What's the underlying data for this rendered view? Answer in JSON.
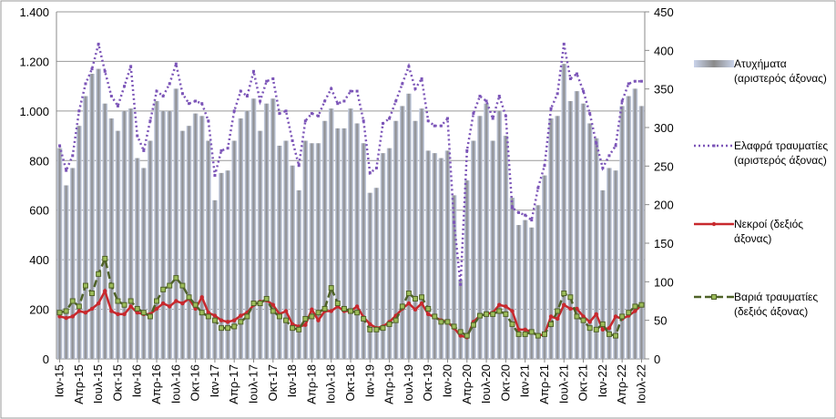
{
  "chart_data": {
    "type": "bar-line",
    "categories": [
      "Ιαν-15",
      null,
      null,
      "Απρ-15",
      null,
      null,
      "Ιουλ-15",
      null,
      null,
      "Οκτ-15",
      null,
      null,
      "Ιαν-16",
      null,
      null,
      "Απρ-16",
      null,
      null,
      "Ιουλ-16",
      null,
      null,
      "Οκτ-16",
      null,
      null,
      "Ιαν-17",
      null,
      null,
      "Απρ-17",
      null,
      null,
      "Ιουλ-17",
      null,
      null,
      "Οκτ-17",
      null,
      null,
      "Ιαν-18",
      null,
      null,
      "Απρ-18",
      null,
      null,
      "Ιουλ-18",
      null,
      null,
      "Οκτ-18",
      null,
      null,
      "Ιαν-19",
      null,
      null,
      "Απρ-19",
      null,
      null,
      "Ιουλ-19",
      null,
      null,
      "Οκτ-19",
      null,
      null,
      "Ιαν-20",
      null,
      null,
      "Απρ-20",
      null,
      null,
      "Ιουλ-20",
      null,
      null,
      "Οκτ-20",
      null,
      null,
      "Ιαν-21",
      null,
      null,
      "Απρ-21",
      null,
      null,
      "Ιουλ-21",
      null,
      null,
      "Οκτ-21",
      null,
      null,
      "Ιαν-22",
      null,
      null,
      "Απρ-22",
      null,
      null,
      "Ιουλ-22"
    ],
    "series": [
      {
        "name": "Ατυχήματα (αριστερός άξονας)",
        "kind": "bar",
        "color": "#b9c5e0",
        "values": [
          850,
          700,
          770,
          940,
          1060,
          1150,
          1170,
          1030,
          970,
          920,
          1000,
          1010,
          810,
          770,
          880,
          1040,
          1000,
          1000,
          1090,
          920,
          940,
          990,
          980,
          880,
          640,
          750,
          760,
          880,
          970,
          1000,
          1050,
          920,
          1030,
          1050,
          860,
          880,
          780,
          680,
          880,
          870,
          870,
          960,
          1010,
          930,
          930,
          1010,
          950,
          870,
          670,
          690,
          830,
          850,
          960,
          1020,
          1070,
          960,
          1010,
          840,
          830,
          810,
          840,
          660,
          320,
          720,
          880,
          980,
          1030,
          880,
          1000,
          900,
          650,
          540,
          560,
          530,
          620,
          740,
          970,
          980,
          1190,
          1040,
          1080,
          1030,
          950,
          890,
          680,
          770,
          760,
          1020,
          1060,
          1090,
          1020
        ]
      },
      {
        "name": "Ελαφρά τραυματίες (αριστερός άξονας)",
        "kind": "dotted",
        "color": "#7c55b8",
        "values": [
          860,
          760,
          820,
          1000,
          1110,
          1170,
          1270,
          1160,
          1060,
          1020,
          1100,
          1180,
          900,
          840,
          960,
          1080,
          1060,
          1110,
          1190,
          1070,
          1030,
          1040,
          1030,
          960,
          740,
          840,
          850,
          1000,
          1080,
          1060,
          1160,
          1040,
          1120,
          1130,
          990,
          1000,
          880,
          780,
          960,
          990,
          980,
          1040,
          1090,
          1030,
          1040,
          1080,
          1080,
          960,
          750,
          770,
          950,
          970,
          1040,
          1110,
          1180,
          1090,
          1130,
          960,
          940,
          940,
          970,
          550,
          300,
          840,
          990,
          1060,
          1040,
          970,
          1060,
          980,
          610,
          590,
          580,
          560,
          690,
          780,
          1010,
          1070,
          1270,
          1130,
          1150,
          1080,
          990,
          870,
          770,
          820,
          860,
          1040,
          1110,
          1120,
          1120
        ]
      },
      {
        "name": "Νεκροί (δεξιός άξονας)",
        "kind": "solid",
        "axis": "y2",
        "color": "#c8282d",
        "values": [
          55,
          53,
          55,
          62,
          60,
          65,
          72,
          88,
          62,
          58,
          58,
          68,
          60,
          58,
          58,
          65,
          72,
          68,
          75,
          72,
          78,
          65,
          80,
          60,
          56,
          50,
          48,
          50,
          56,
          60,
          70,
          74,
          76,
          70,
          58,
          62,
          45,
          42,
          44,
          64,
          50,
          62,
          62,
          68,
          62,
          62,
          68,
          54,
          45,
          40,
          42,
          48,
          56,
          65,
          72,
          64,
          72,
          58,
          54,
          50,
          48,
          40,
          30,
          28,
          48,
          56,
          58,
          60,
          70,
          68,
          62,
          38,
          38,
          35,
          30,
          32,
          55,
          52,
          70,
          65,
          65,
          55,
          48,
          58,
          38,
          40,
          55,
          52,
          56,
          62,
          70
        ]
      },
      {
        "name": "Βαριά τραυματίες (δεξιός άξονας)",
        "kind": "dashed",
        "axis": "y2",
        "color": "#4f6228",
        "values": [
          60,
          62,
          75,
          68,
          95,
          85,
          110,
          130,
          95,
          75,
          70,
          75,
          65,
          60,
          55,
          75,
          90,
          95,
          105,
          95,
          80,
          70,
          60,
          55,
          50,
          40,
          40,
          42,
          48,
          55,
          72,
          72,
          78,
          62,
          55,
          50,
          40,
          38,
          52,
          55,
          60,
          65,
          92,
          72,
          65,
          62,
          60,
          52,
          38,
          38,
          40,
          45,
          50,
          68,
          85,
          78,
          80,
          65,
          55,
          48,
          48,
          42,
          35,
          30,
          44,
          56,
          58,
          58,
          62,
          58,
          45,
          32,
          32,
          35,
          30,
          32,
          45,
          62,
          85,
          80,
          55,
          50,
          40,
          38,
          45,
          32,
          30,
          55,
          60,
          68,
          70
        ]
      }
    ],
    "ylim": [
      0,
      1400
    ],
    "yticks": [
      0,
      200,
      400,
      600,
      800,
      {
        "value": 1000,
        "label": "1.000"
      },
      {
        "value": 1200,
        "label": "1.200"
      },
      {
        "value": 1400,
        "label": "1.400"
      }
    ],
    "y2lim": [
      0,
      450
    ],
    "y2ticks": [
      0,
      50,
      100,
      150,
      200,
      250,
      300,
      350,
      400,
      450
    ],
    "grid": true
  }
}
